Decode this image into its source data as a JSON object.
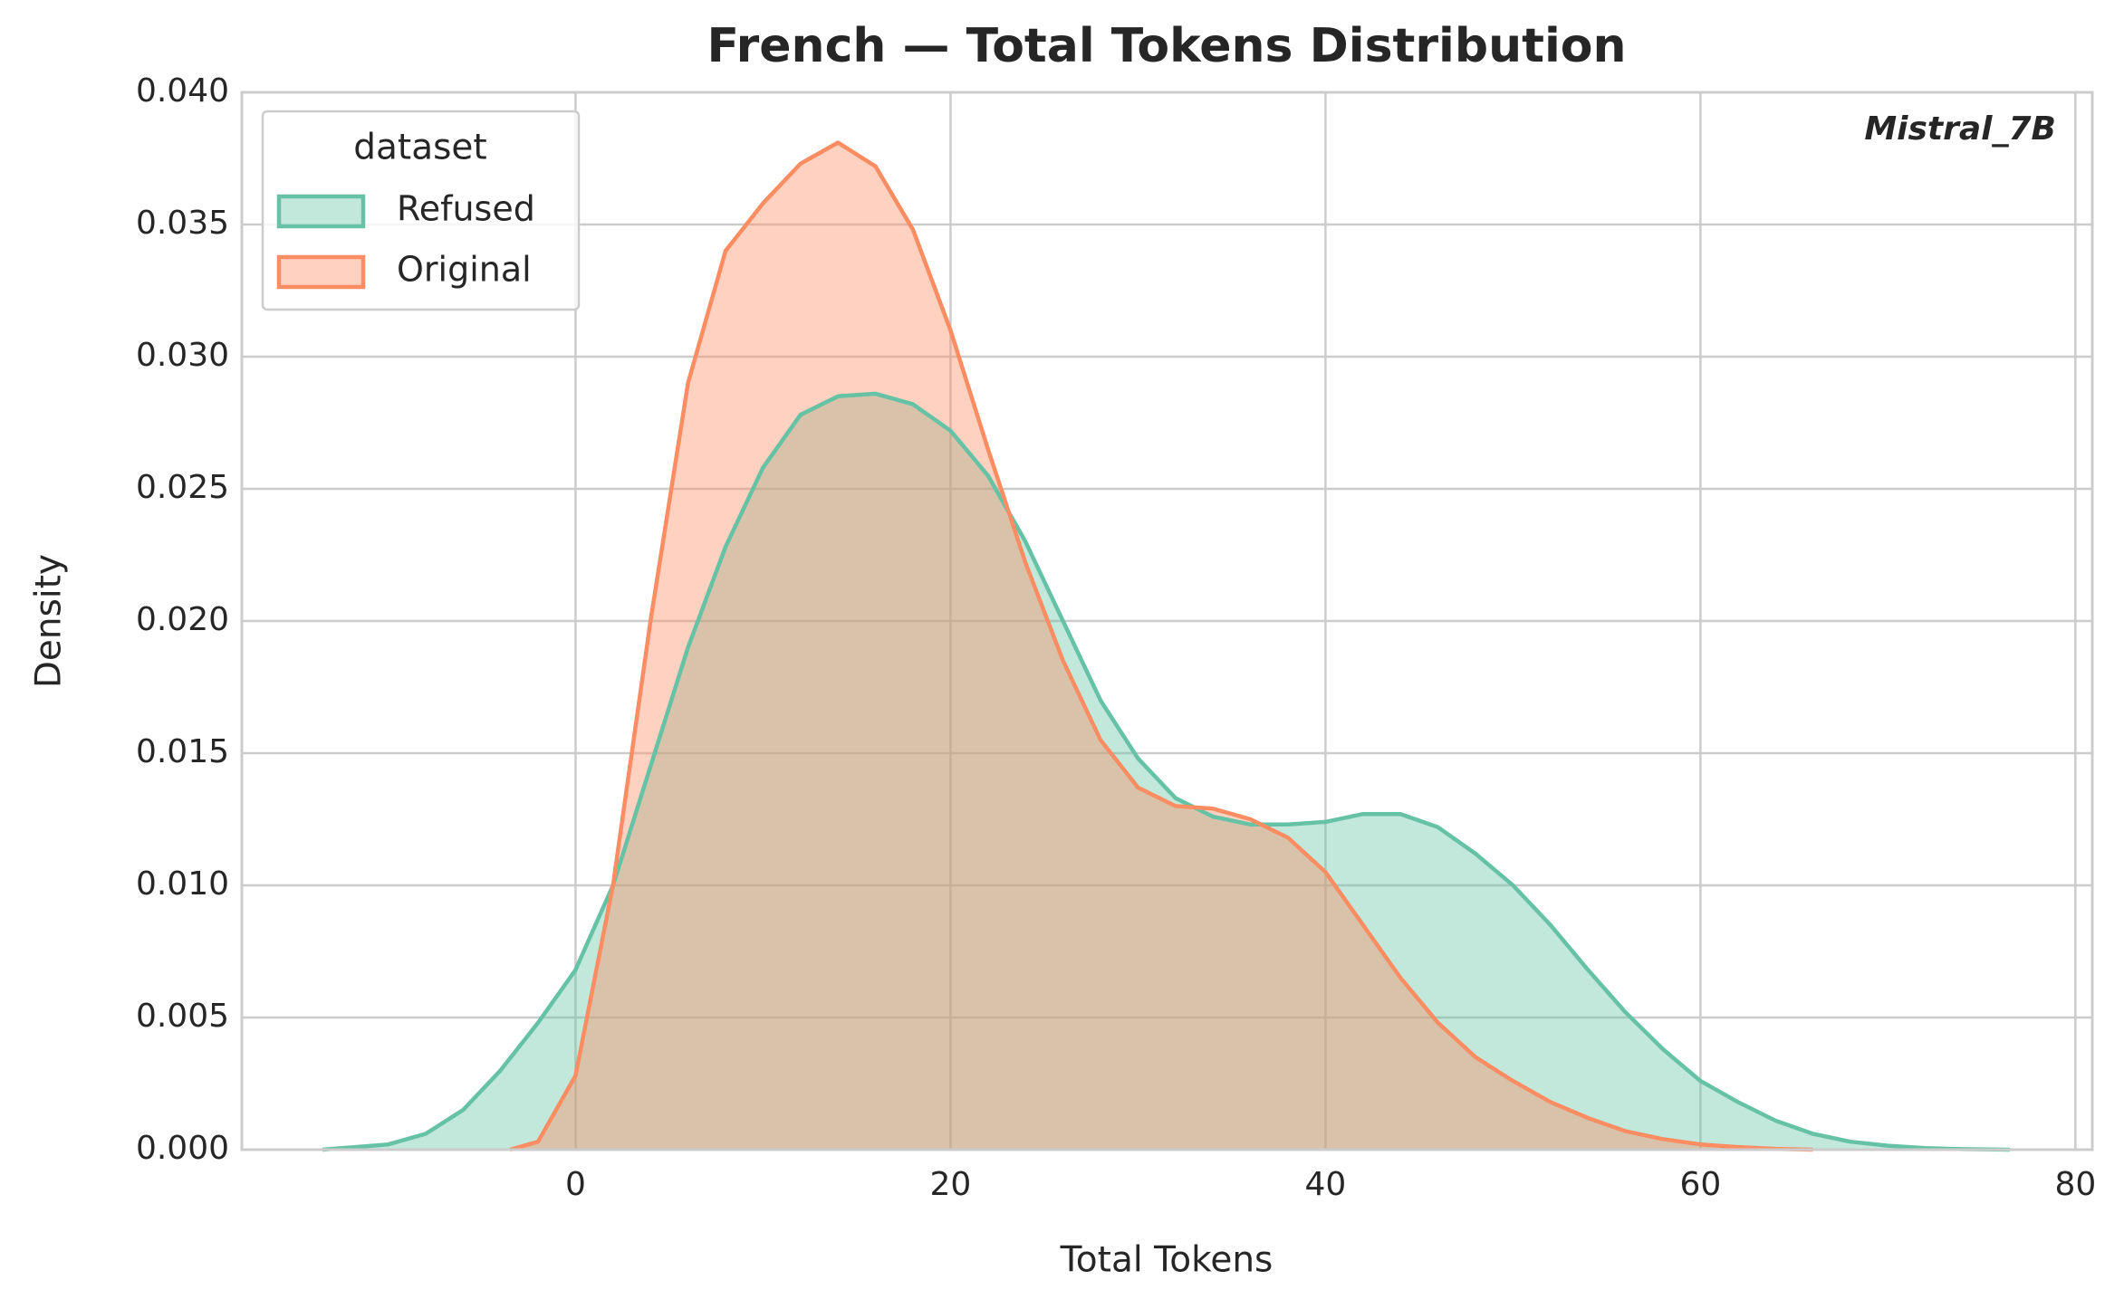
{
  "chart_data": {
    "type": "kde",
    "title": "French — Total Tokens Distribution",
    "xlabel": "Total Tokens",
    "ylabel": "Density",
    "annotation": "Mistral_7B",
    "legend_title": "dataset",
    "legend_loc": "upper left",
    "grid": true,
    "xlim": [
      -17.8,
      80.9
    ],
    "ylim": [
      0,
      0.04
    ],
    "xticks": [
      0,
      20,
      40,
      60,
      80
    ],
    "yticks": [
      {
        "value": 0,
        "label": "0.000"
      },
      {
        "value": 0.005,
        "label": "0.005"
      },
      {
        "value": 0.01,
        "label": "0.010"
      },
      {
        "value": 0.015,
        "label": "0.015"
      },
      {
        "value": 0.02,
        "label": "0.020"
      },
      {
        "value": 0.025,
        "label": "0.025"
      },
      {
        "value": 0.03,
        "label": "0.030"
      },
      {
        "value": 0.035,
        "label": "0.035"
      },
      {
        "value": 0.04,
        "label": "0.040"
      }
    ],
    "series": [
      {
        "name": "Refused",
        "color": "#66c2a5",
        "x": [
          -13.5,
          -10,
          -8,
          -6,
          -4,
          -2,
          0,
          2,
          4,
          6,
          8,
          10,
          12,
          14,
          16,
          18,
          20,
          22,
          24,
          26,
          28,
          30,
          32,
          34,
          36,
          38,
          40,
          42,
          44,
          46,
          48,
          50,
          52,
          54,
          56,
          58,
          60,
          62,
          64,
          66,
          68,
          70,
          72,
          74,
          76.5
        ],
        "values": [
          0,
          0.0002,
          0.0006,
          0.0015,
          0.003,
          0.0048,
          0.0068,
          0.01,
          0.0145,
          0.019,
          0.0228,
          0.0258,
          0.0278,
          0.0285,
          0.0286,
          0.0282,
          0.0272,
          0.0255,
          0.023,
          0.02,
          0.017,
          0.0148,
          0.0133,
          0.0126,
          0.0123,
          0.0123,
          0.0124,
          0.0127,
          0.0127,
          0.0122,
          0.0112,
          0.01,
          0.0085,
          0.0068,
          0.0052,
          0.0038,
          0.0026,
          0.0018,
          0.0011,
          0.0006,
          0.0003,
          0.00015,
          6e-05,
          2e-05,
          0
        ]
      },
      {
        "name": "Original",
        "color": "#fc8d62",
        "x": [
          -3.5,
          -2,
          0,
          2,
          4,
          6,
          8,
          10,
          12,
          14,
          16,
          18,
          20,
          22,
          24,
          26,
          28,
          30,
          32,
          34,
          36,
          38,
          40,
          42,
          44,
          46,
          48,
          50,
          52,
          54,
          56,
          58,
          60,
          62,
          64,
          66
        ],
        "values": [
          0,
          0.0003,
          0.0028,
          0.01,
          0.02,
          0.029,
          0.034,
          0.0358,
          0.0373,
          0.0381,
          0.0372,
          0.0348,
          0.031,
          0.0265,
          0.0222,
          0.0185,
          0.0155,
          0.0137,
          0.013,
          0.0129,
          0.0125,
          0.0118,
          0.0105,
          0.0085,
          0.0065,
          0.0048,
          0.0035,
          0.0026,
          0.0018,
          0.0012,
          0.0007,
          0.0004,
          0.0002,
          0.0001,
          3e-05,
          0
        ]
      }
    ]
  }
}
